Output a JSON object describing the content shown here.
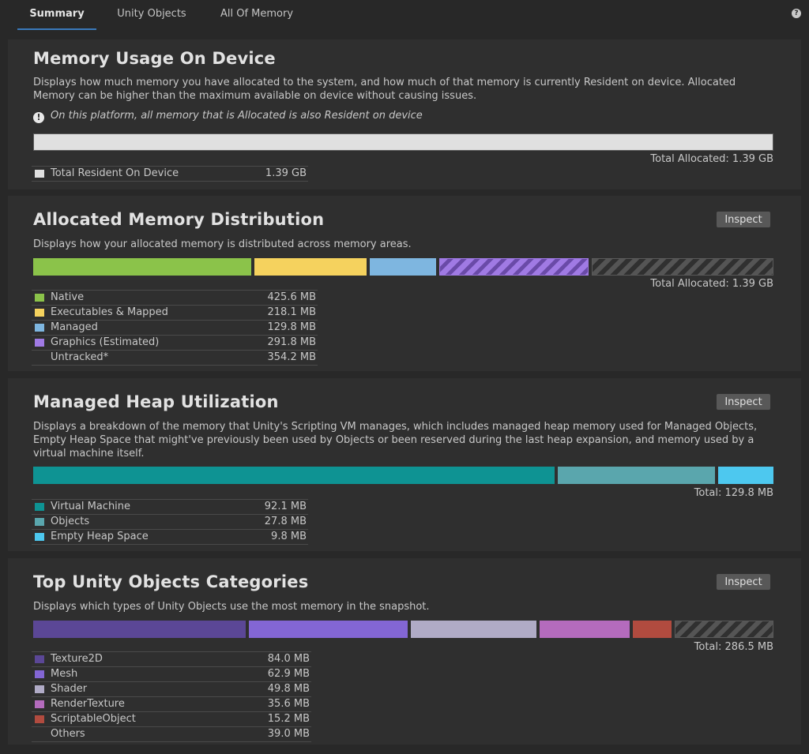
{
  "tabs": [
    {
      "label": "Summary"
    },
    {
      "label": "Unity Objects"
    },
    {
      "label": "All Of Memory"
    }
  ],
  "help_icon": "?",
  "device": {
    "title": "Memory Usage On Device",
    "description": "Displays how much memory you have allocated to the system, and how much of that memory is currently Resident on device. Allocated Memory can be higher than the maximum available on device without causing issues.",
    "info_icon": "!",
    "note": "On this platform, all memory that is Allocated is also Resident on device",
    "bar_fill_fraction": 1.0,
    "bar_color": "#e0e0e0",
    "total": "Total Allocated: 1.39 GB",
    "legend": [
      {
        "name": "Total Resident On Device",
        "value": "1.39 GB",
        "color": "#e0e0e0"
      }
    ]
  },
  "allocated": {
    "title": "Allocated Memory Distribution",
    "inspect": "Inspect",
    "description": "Displays how your allocated memory is distributed across memory areas.",
    "total": "Total Allocated: 1.39 GB",
    "legend": [
      {
        "name": "Native",
        "value": "425.6 MB",
        "color": "#8bc34a"
      },
      {
        "name": "Executables & Mapped",
        "value": "218.1 MB",
        "color": "#f5d25e"
      },
      {
        "name": "Managed",
        "value": "129.8 MB",
        "color": "#7eb6e0"
      },
      {
        "name": "Graphics (Estimated)",
        "value": "291.8 MB",
        "color": "#a07ae4"
      },
      {
        "name": "Untracked*",
        "value": "354.2 MB",
        "color": "#2f2f2f"
      }
    ]
  },
  "managed": {
    "title": "Managed Heap Utilization",
    "inspect": "Inspect",
    "description": "Displays a breakdown of the memory that Unity's Scripting VM manages, which includes managed heap memory used for Managed Objects, Empty Heap Space that might've previously been used by Objects or been reserved during the last heap expansion, and memory used by a virtual machine itself.",
    "total": "Total: 129.8 MB",
    "legend": [
      {
        "name": "Virtual Machine",
        "value": "92.1 MB",
        "color": "#0e9393"
      },
      {
        "name": "Objects",
        "value": "27.8 MB",
        "color": "#5aa6ad"
      },
      {
        "name": "Empty Heap Space",
        "value": "9.8 MB",
        "color": "#4dc8ef"
      }
    ]
  },
  "objects": {
    "title": "Top Unity Objects Categories",
    "inspect": "Inspect",
    "description": "Displays which types of Unity Objects use the most memory in the snapshot.",
    "total": "Total: 286.5 MB",
    "legend": [
      {
        "name": "Texture2D",
        "value": "84.0 MB",
        "color": "#5b4796"
      },
      {
        "name": "Mesh",
        "value": "62.9 MB",
        "color": "#8366d4"
      },
      {
        "name": "Shader",
        "value": "49.8 MB",
        "color": "#b0abc6"
      },
      {
        "name": "RenderTexture",
        "value": "35.6 MB",
        "color": "#b46bbd"
      },
      {
        "name": "ScriptableObject",
        "value": "15.2 MB",
        "color": "#b14b3f"
      },
      {
        "name": "Others",
        "value": "39.0 MB",
        "color": "#2f2f2f"
      }
    ]
  }
}
